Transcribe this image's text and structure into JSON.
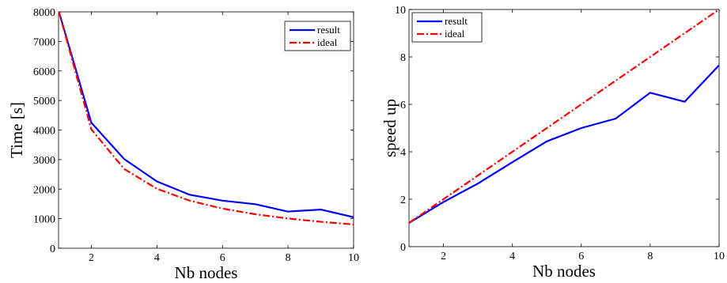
{
  "chart_data": [
    {
      "type": "line",
      "xlabel": "Nb nodes",
      "ylabel": "Time [s]",
      "xlim": [
        1,
        10
      ],
      "ylim": [
        0,
        8000
      ],
      "xticks": [
        2,
        4,
        6,
        8,
        10
      ],
      "yticks": [
        0,
        1000,
        2000,
        3000,
        4000,
        5000,
        6000,
        7000,
        8000
      ],
      "grid": false,
      "legend": "top-right",
      "series": [
        {
          "name": "result",
          "color": "#0000ff",
          "style": "solid",
          "x": [
            1,
            2,
            3,
            4,
            5,
            6,
            7,
            8,
            9,
            10
          ],
          "y": [
            8050,
            4250,
            3020,
            2260,
            1810,
            1610,
            1490,
            1240,
            1310,
            1050
          ]
        },
        {
          "name": "ideal",
          "color": "#ff0000",
          "style": "dashdot",
          "x": [
            1,
            2,
            3,
            4,
            5,
            6,
            7,
            8,
            9,
            10
          ],
          "y": [
            8050,
            4025,
            2683,
            2013,
            1610,
            1342,
            1150,
            1006,
            894,
            805
          ]
        }
      ]
    },
    {
      "type": "line",
      "xlabel": "Nb nodes",
      "ylabel": "speed up",
      "xlim": [
        1,
        10
      ],
      "ylim": [
        0,
        10
      ],
      "xticks": [
        2,
        4,
        6,
        8,
        10
      ],
      "yticks": [
        0,
        2,
        4,
        6,
        8,
        10
      ],
      "grid": false,
      "legend": "top-left",
      "series": [
        {
          "name": "result",
          "color": "#0000ff",
          "style": "solid",
          "x": [
            1,
            2,
            3,
            4,
            5,
            6,
            7,
            8,
            9,
            10
          ],
          "y": [
            1.0,
            1.88,
            2.66,
            3.56,
            4.44,
            5.0,
            5.4,
            6.49,
            6.11,
            7.65
          ]
        },
        {
          "name": "ideal",
          "color": "#ff0000",
          "style": "dashdot",
          "x": [
            1,
            2,
            3,
            4,
            5,
            6,
            7,
            8,
            9,
            10
          ],
          "y": [
            1,
            2,
            3,
            4,
            5,
            6,
            7,
            8,
            9,
            10
          ]
        }
      ]
    }
  ]
}
